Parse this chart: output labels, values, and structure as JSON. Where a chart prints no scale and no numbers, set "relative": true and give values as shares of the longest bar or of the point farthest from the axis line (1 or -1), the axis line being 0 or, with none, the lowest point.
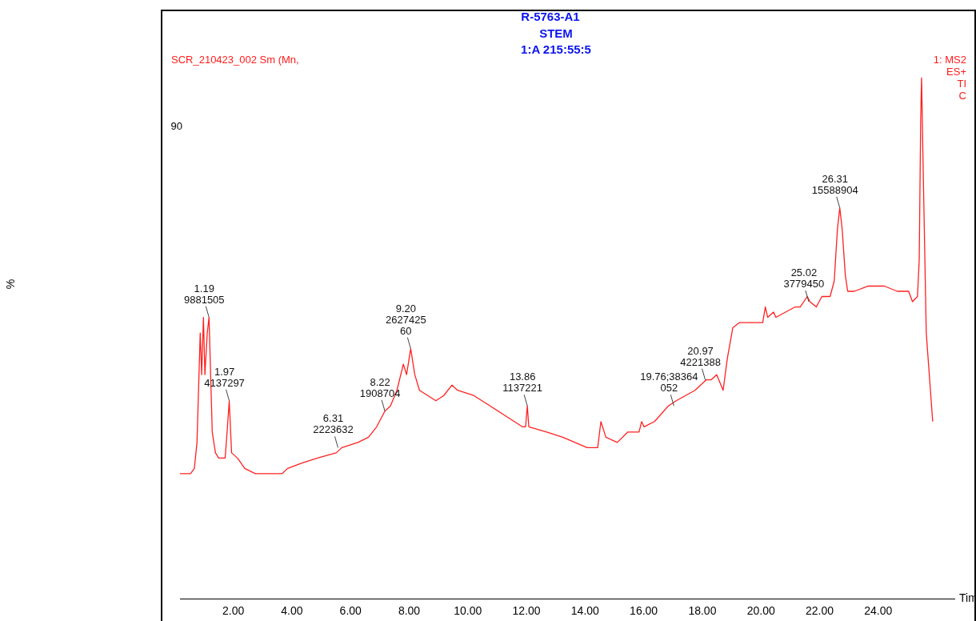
{
  "chart_data": {
    "type": "line",
    "title": "R-5763-A1",
    "subtitle": "STEM\n1:A 215:55:5",
    "xlabel": "Tim",
    "relative": true,
    "grid": false,
    "legend": false,
    "marker": "none",
    "line_style": "solid",
    "xlim": [
      0.18,
      26.6
    ],
    "xticks": [
      {
        "value": 2,
        "label": "2.00"
      },
      {
        "value": 4,
        "label": "4.00"
      },
      {
        "value": 6,
        "label": "6.00"
      },
      {
        "value": 8,
        "label": "8.00"
      },
      {
        "value": 10,
        "label": "10.00"
      },
      {
        "value": 12,
        "label": "12.00"
      },
      {
        "value": 14,
        "label": "14.00"
      },
      {
        "value": 16,
        "label": "16.00"
      },
      {
        "value": 18,
        "label": "18.00"
      },
      {
        "value": 20,
        "label": "20.00"
      },
      {
        "value": 22,
        "label": "22.00"
      },
      {
        "value": 24,
        "label": "24.00"
      }
    ],
    "series": [
      {
        "color": "#ff2020",
        "x": [
          0.18,
          0.54,
          0.67,
          0.76,
          0.87,
          0.92,
          0.98,
          1.03,
          1.11,
          1.17,
          1.28,
          1.39,
          1.5,
          1.72,
          1.8,
          1.86,
          1.94,
          2.14,
          2.39,
          2.75,
          3.3,
          3.66,
          3.85,
          4.32,
          4.87,
          5.51,
          5.7,
          6.25,
          6.61,
          6.89,
          7.17,
          7.36,
          7.58,
          7.8,
          7.91,
          8.05,
          8.19,
          8.35,
          8.63,
          8.91,
          9.18,
          9.46,
          9.65,
          10.2,
          10.76,
          11.31,
          11.86,
          11.97,
          12.03,
          12.08,
          12.69,
          13.24,
          14.07,
          14.43,
          14.54,
          14.71,
          15.1,
          15.46,
          15.84,
          15.93,
          16.01,
          16.37,
          16.84,
          17.11,
          17.75,
          18.13,
          18.3,
          18.49,
          18.71,
          18.85,
          19.04,
          19.27,
          19.4,
          20.06,
          20.15,
          20.23,
          20.43,
          20.51,
          21.17,
          21.34,
          21.58,
          21.67,
          21.89,
          22.08,
          22.36,
          22.5,
          22.61,
          22.69,
          22.77,
          22.88,
          22.96,
          23.19,
          23.66,
          24.21,
          24.65,
          25.04,
          25.17,
          25.34,
          25.4,
          25.45,
          25.48,
          25.53,
          25.64,
          25.86
        ],
        "values": [
          0.24,
          0.24,
          0.25,
          0.3,
          0.51,
          0.43,
          0.54,
          0.43,
          0.51,
          0.54,
          0.32,
          0.28,
          0.27,
          0.27,
          0.33,
          0.38,
          0.28,
          0.27,
          0.25,
          0.24,
          0.24,
          0.24,
          0.25,
          0.26,
          0.27,
          0.28,
          0.29,
          0.3,
          0.31,
          0.33,
          0.36,
          0.37,
          0.4,
          0.45,
          0.43,
          0.48,
          0.43,
          0.4,
          0.39,
          0.38,
          0.39,
          0.41,
          0.4,
          0.39,
          0.37,
          0.35,
          0.33,
          0.33,
          0.37,
          0.33,
          0.32,
          0.31,
          0.29,
          0.29,
          0.34,
          0.31,
          0.3,
          0.32,
          0.32,
          0.34,
          0.33,
          0.34,
          0.37,
          0.38,
          0.4,
          0.42,
          0.42,
          0.43,
          0.4,
          0.46,
          0.52,
          0.53,
          0.53,
          0.53,
          0.56,
          0.54,
          0.55,
          0.54,
          0.56,
          0.56,
          0.58,
          0.57,
          0.56,
          0.58,
          0.58,
          0.61,
          0.71,
          0.75,
          0.71,
          0.62,
          0.59,
          0.59,
          0.6,
          0.6,
          0.59,
          0.59,
          0.57,
          0.58,
          0.65,
          0.92,
          1,
          0.84,
          0.51,
          0.34
        ]
      }
    ],
    "annotations": [
      "SCR_210423_002 Sm (Mn,",
      "1: MS2\nES+\nTI\nC",
      "90",
      "%",
      {
        "text": "1.19\n9881505",
        "x": 1.17,
        "y": 0.54
      },
      {
        "text": "1.97\n4137297",
        "x": 1.86,
        "y": 0.38
      },
      {
        "text": "6.31\n2223632",
        "x": 5.57,
        "y": 0.29
      },
      {
        "text": "8.22\n1908704",
        "x": 7.17,
        "y": 0.36
      },
      {
        "text": "9.20\n2627425\n60",
        "x": 8.05,
        "y": 0.48
      },
      {
        "text": "13.86\n1137221",
        "x": 12.03,
        "y": 0.37
      },
      {
        "text": "19.76;38364\n052",
        "x": 17.03,
        "y": 0.37
      },
      {
        "text": "20.97\n4221388",
        "x": 18.1,
        "y": 0.42
      },
      {
        "text": "25.02\n3779450",
        "x": 21.63,
        "y": 0.57
      },
      {
        "text": "26.31\n15588904",
        "x": 22.69,
        "y": 0.75
      }
    ]
  }
}
